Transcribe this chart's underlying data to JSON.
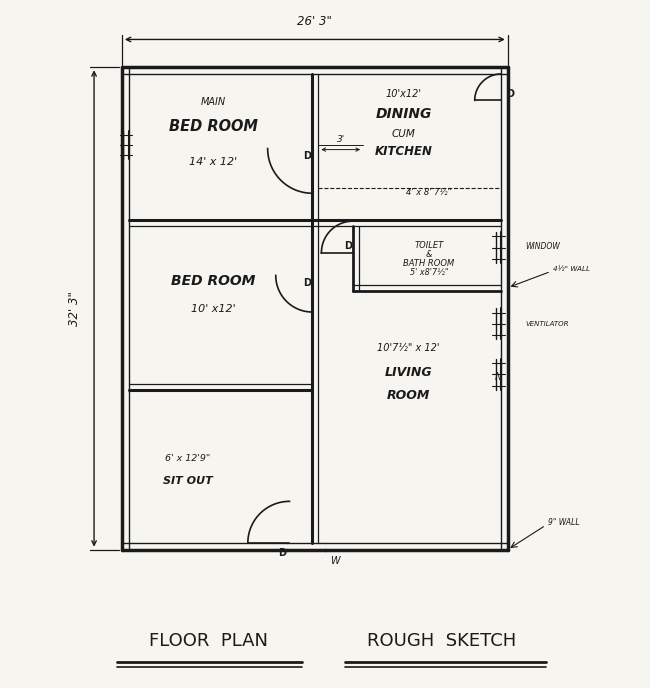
{
  "bg": "#f6f5f0",
  "lc": "#1a1a1a",
  "rooms": {
    "mbr1": "MAIN",
    "mbr2": "BED ROOM",
    "mbr3": "14' x 12'",
    "dk1": "10'x12'",
    "dk2": "DINING",
    "dk3": "CUM",
    "dk4": "KITCHEN",
    "br1": "BED ROOM",
    "br2": "10' x12'",
    "so1": "6' x 12'9\"",
    "so2": "SIT OUT",
    "tb1": "TOILET",
    "tb2": "&",
    "tb3": "BATH ROOM",
    "tb4": "5' x8'7½\"",
    "lr1": "10'7½\" x 12'",
    "lr2": "LIVING",
    "lr3": "ROOM",
    "pg": "4' x 8' 7½\""
  },
  "dims": {
    "top": "26' 3\"",
    "left": "32' 3\"",
    "s3": "3'",
    "w45": "4½\" WALL",
    "w9": "9\" WALL",
    "win": "WINDOW",
    "vent": "VENTILATOR"
  },
  "title1": "FLOOR  PLAN",
  "title2": "ROUGH  SKETCH"
}
